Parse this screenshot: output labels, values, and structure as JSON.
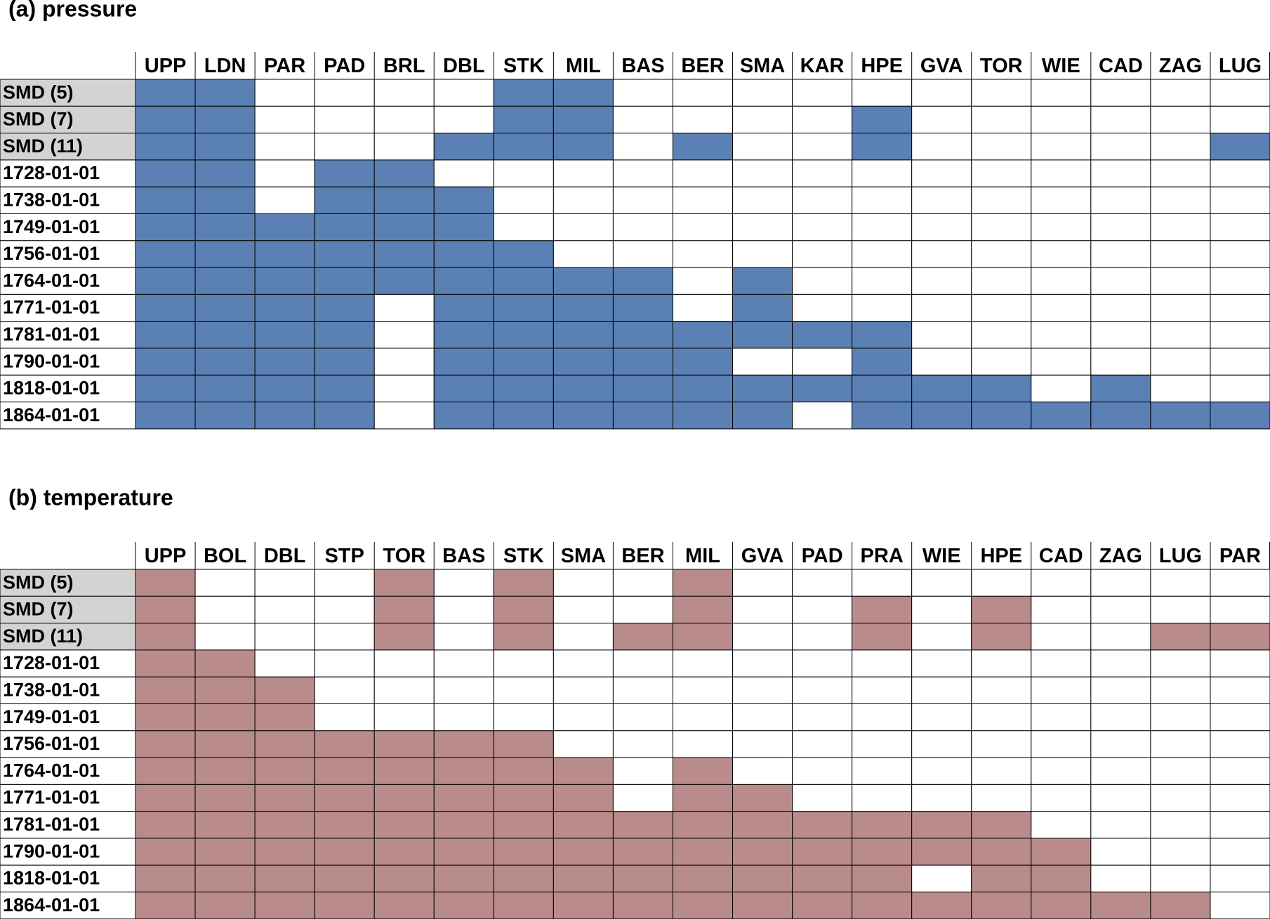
{
  "panels": [
    {
      "title": "(a) pressure",
      "color": "#5b80b3",
      "columns": [
        "UPP",
        "LDN",
        "PAR",
        "PAD",
        "BRL",
        "DBL",
        "STK",
        "MIL",
        "BAS",
        "BER",
        "SMA",
        "KAR",
        "HPE",
        "GVA",
        "TOR",
        "WIE",
        "CAD",
        "ZAG",
        "LUG"
      ],
      "rows": [
        {
          "label": "SMD (5)",
          "shaded": true,
          "cells": [
            1,
            1,
            0,
            0,
            0,
            0,
            1,
            1,
            0,
            0,
            0,
            0,
            0,
            0,
            0,
            0,
            0,
            0,
            0
          ]
        },
        {
          "label": "SMD (7)",
          "shaded": true,
          "cells": [
            1,
            1,
            0,
            0,
            0,
            0,
            1,
            1,
            0,
            0,
            0,
            0,
            1,
            0,
            0,
            0,
            0,
            0,
            0
          ]
        },
        {
          "label": "SMD (11)",
          "shaded": true,
          "cells": [
            1,
            1,
            0,
            0,
            0,
            1,
            1,
            1,
            0,
            1,
            0,
            0,
            1,
            0,
            0,
            0,
            0,
            0,
            1
          ]
        },
        {
          "label": "1728-01-01",
          "shaded": false,
          "cells": [
            1,
            1,
            0,
            1,
            1,
            0,
            0,
            0,
            0,
            0,
            0,
            0,
            0,
            0,
            0,
            0,
            0,
            0,
            0
          ]
        },
        {
          "label": "1738-01-01",
          "shaded": false,
          "cells": [
            1,
            1,
            0,
            1,
            1,
            1,
            0,
            0,
            0,
            0,
            0,
            0,
            0,
            0,
            0,
            0,
            0,
            0,
            0
          ]
        },
        {
          "label": "1749-01-01",
          "shaded": false,
          "cells": [
            1,
            1,
            1,
            1,
            1,
            1,
            0,
            0,
            0,
            0,
            0,
            0,
            0,
            0,
            0,
            0,
            0,
            0,
            0
          ]
        },
        {
          "label": "1756-01-01",
          "shaded": false,
          "cells": [
            1,
            1,
            1,
            1,
            1,
            1,
            1,
            0,
            0,
            0,
            0,
            0,
            0,
            0,
            0,
            0,
            0,
            0,
            0
          ]
        },
        {
          "label": "1764-01-01",
          "shaded": false,
          "cells": [
            1,
            1,
            1,
            1,
            1,
            1,
            1,
            1,
            1,
            0,
            1,
            0,
            0,
            0,
            0,
            0,
            0,
            0,
            0
          ]
        },
        {
          "label": "1771-01-01",
          "shaded": false,
          "cells": [
            1,
            1,
            1,
            1,
            0,
            1,
            1,
            1,
            1,
            0,
            1,
            0,
            0,
            0,
            0,
            0,
            0,
            0,
            0
          ]
        },
        {
          "label": "1781-01-01",
          "shaded": false,
          "cells": [
            1,
            1,
            1,
            1,
            0,
            1,
            1,
            1,
            1,
            1,
            1,
            1,
            1,
            0,
            0,
            0,
            0,
            0,
            0
          ]
        },
        {
          "label": "1790-01-01",
          "shaded": false,
          "cells": [
            1,
            1,
            1,
            1,
            0,
            1,
            1,
            1,
            1,
            1,
            0,
            0,
            1,
            0,
            0,
            0,
            0,
            0,
            0
          ]
        },
        {
          "label": "1818-01-01",
          "shaded": false,
          "cells": [
            1,
            1,
            1,
            1,
            0,
            1,
            1,
            1,
            1,
            1,
            1,
            1,
            1,
            1,
            1,
            0,
            1,
            0,
            0
          ]
        },
        {
          "label": "1864-01-01",
          "shaded": false,
          "cells": [
            1,
            1,
            1,
            1,
            0,
            1,
            1,
            1,
            1,
            1,
            1,
            0,
            1,
            1,
            1,
            1,
            1,
            1,
            1
          ]
        }
      ]
    },
    {
      "title": "(b) temperature",
      "color": "#b98b8b",
      "columns": [
        "UPP",
        "BOL",
        "DBL",
        "STP",
        "TOR",
        "BAS",
        "STK",
        "SMA",
        "BER",
        "MIL",
        "GVA",
        "PAD",
        "PRA",
        "WIE",
        "HPE",
        "CAD",
        "ZAG",
        "LUG",
        "PAR"
      ],
      "rows": [
        {
          "label": "SMD (5)",
          "shaded": true,
          "cells": [
            1,
            0,
            0,
            0,
            1,
            0,
            1,
            0,
            0,
            1,
            0,
            0,
            0,
            0,
            0,
            0,
            0,
            0,
            0
          ]
        },
        {
          "label": "SMD (7)",
          "shaded": true,
          "cells": [
            1,
            0,
            0,
            0,
            1,
            0,
            1,
            0,
            0,
            1,
            0,
            0,
            1,
            0,
            1,
            0,
            0,
            0,
            0
          ]
        },
        {
          "label": "SMD (11)",
          "shaded": true,
          "cells": [
            1,
            0,
            0,
            0,
            1,
            0,
            1,
            0,
            1,
            1,
            0,
            0,
            1,
            0,
            1,
            0,
            0,
            1,
            1
          ]
        },
        {
          "label": "1728-01-01",
          "shaded": false,
          "cells": [
            1,
            1,
            0,
            0,
            0,
            0,
            0,
            0,
            0,
            0,
            0,
            0,
            0,
            0,
            0,
            0,
            0,
            0,
            0
          ]
        },
        {
          "label": "1738-01-01",
          "shaded": false,
          "cells": [
            1,
            1,
            1,
            0,
            0,
            0,
            0,
            0,
            0,
            0,
            0,
            0,
            0,
            0,
            0,
            0,
            0,
            0,
            0
          ]
        },
        {
          "label": "1749-01-01",
          "shaded": false,
          "cells": [
            1,
            1,
            1,
            0,
            0,
            0,
            0,
            0,
            0,
            0,
            0,
            0,
            0,
            0,
            0,
            0,
            0,
            0,
            0
          ]
        },
        {
          "label": "1756-01-01",
          "shaded": false,
          "cells": [
            1,
            1,
            1,
            1,
            1,
            1,
            1,
            0,
            0,
            0,
            0,
            0,
            0,
            0,
            0,
            0,
            0,
            0,
            0
          ]
        },
        {
          "label": "1764-01-01",
          "shaded": false,
          "cells": [
            1,
            1,
            1,
            1,
            1,
            1,
            1,
            1,
            0,
            1,
            0,
            0,
            0,
            0,
            0,
            0,
            0,
            0,
            0
          ]
        },
        {
          "label": "1771-01-01",
          "shaded": false,
          "cells": [
            1,
            1,
            1,
            1,
            1,
            1,
            1,
            1,
            0,
            1,
            1,
            0,
            0,
            0,
            0,
            0,
            0,
            0,
            0
          ]
        },
        {
          "label": "1781-01-01",
          "shaded": false,
          "cells": [
            1,
            1,
            1,
            1,
            1,
            1,
            1,
            1,
            1,
            1,
            1,
            1,
            1,
            1,
            1,
            0,
            0,
            0,
            0
          ]
        },
        {
          "label": "1790-01-01",
          "shaded": false,
          "cells": [
            1,
            1,
            1,
            1,
            1,
            1,
            1,
            1,
            1,
            1,
            1,
            1,
            1,
            1,
            1,
            1,
            0,
            0,
            0
          ]
        },
        {
          "label": "1818-01-01",
          "shaded": false,
          "cells": [
            1,
            1,
            1,
            1,
            1,
            1,
            1,
            1,
            1,
            1,
            1,
            1,
            1,
            0,
            1,
            1,
            0,
            0,
            0
          ]
        },
        {
          "label": "1864-01-01",
          "shaded": false,
          "cells": [
            1,
            1,
            1,
            1,
            1,
            1,
            1,
            1,
            1,
            1,
            1,
            1,
            1,
            1,
            1,
            1,
            1,
            1,
            0
          ]
        }
      ]
    }
  ]
}
